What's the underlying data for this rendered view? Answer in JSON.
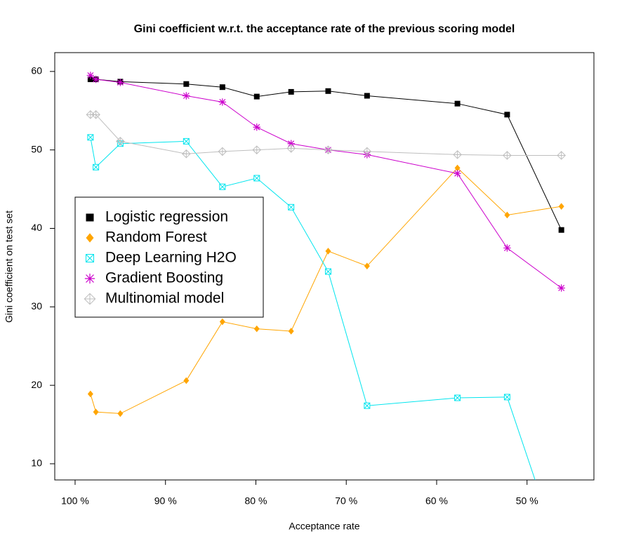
{
  "chart_data": {
    "type": "line",
    "title": "Gini coefficient w.r.t. the acceptance rate of the previous scoring model",
    "x_label": "Acceptance rate",
    "y_label": "Gini coefficient on test set",
    "x": [
      98.3,
      97.7,
      95.0,
      87.7,
      83.7,
      79.9,
      76.1,
      72.0,
      67.7,
      57.7,
      52.2,
      46.2
    ],
    "xlim": [
      102.25,
      42.6
    ],
    "xticks": [
      {
        "value": 100,
        "label": "100 %"
      },
      {
        "value": 90,
        "label": "90 %"
      },
      {
        "value": 80,
        "label": "80 %"
      },
      {
        "value": 70,
        "label": "70 %"
      },
      {
        "value": 60,
        "label": "60 %"
      },
      {
        "value": 50,
        "label": "50 %"
      }
    ],
    "ylim": [
      7.94,
      62.4
    ],
    "yticks": [
      10,
      20,
      30,
      40,
      50,
      60
    ],
    "grid": false,
    "legend": "middle left",
    "series": [
      {
        "name": "Logistic regression",
        "color": "#000000",
        "marker": "square",
        "values": [
          59.0,
          59.0,
          58.7,
          58.4,
          58.0,
          56.8,
          57.4,
          57.5,
          56.9,
          55.9,
          54.5,
          39.8
        ]
      },
      {
        "name": "Random Forest",
        "color": "#ffa500",
        "marker": "diamond",
        "values": [
          18.9,
          16.6,
          16.4,
          20.6,
          28.1,
          27.2,
          26.9,
          37.1,
          35.2,
          47.7,
          41.7,
          42.8
        ]
      },
      {
        "name": "Deep Learning H2O",
        "color": "#00e5ee",
        "marker": "square-x",
        "values": [
          51.6,
          47.8,
          50.8,
          51.1,
          45.3,
          46.4,
          42.7,
          34.5,
          17.4,
          18.4,
          18.5,
          -2
        ]
      },
      {
        "name": "Gradient Boosting",
        "color": "#cc00cc",
        "marker": "asterisk",
        "values": [
          59.5,
          59.0,
          58.6,
          56.9,
          56.1,
          52.9,
          50.8,
          50.0,
          49.4,
          47.0,
          37.5,
          32.4
        ]
      },
      {
        "name": "Multinomial model",
        "color": "#bebebe",
        "marker": "diamond-plus",
        "values": [
          54.5,
          54.5,
          51.1,
          49.5,
          49.8,
          50.0,
          50.2,
          50.0,
          49.8,
          49.4,
          49.3,
          49.3
        ]
      }
    ]
  }
}
